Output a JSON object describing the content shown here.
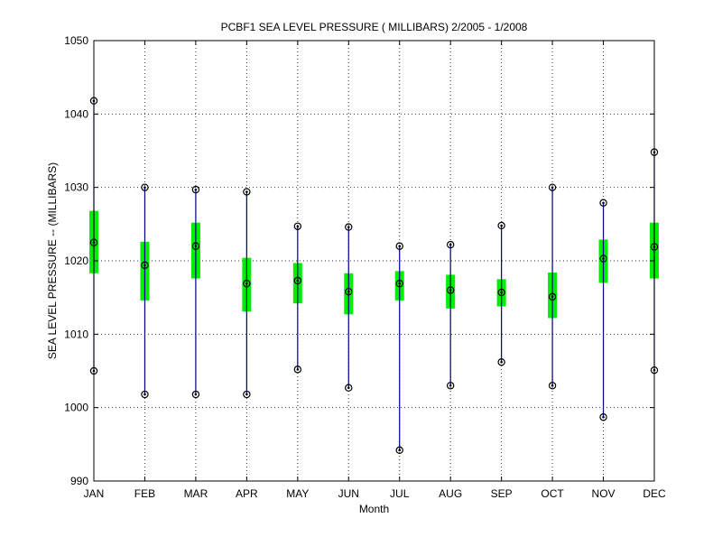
{
  "chart_data": {
    "type": "box",
    "title": "PCBF1  SEA LEVEL PRESSURE ( MILLIBARS) 2/2005 - 1/2008",
    "xlabel": "Month",
    "ylabel": "SEA LEVEL PRESSURE -- (MILLIBARS)",
    "ylim": [
      990,
      1050
    ],
    "yticks": [
      990,
      1000,
      1010,
      1020,
      1030,
      1040,
      1050
    ],
    "grid": true,
    "categories": [
      "JAN",
      "FEB",
      "MAR",
      "APR",
      "MAY",
      "JUN",
      "JUL",
      "AUG",
      "SEP",
      "OCT",
      "NOV",
      "DEC"
    ],
    "min": [
      1005.0,
      1001.8,
      1001.8,
      1001.8,
      1005.2,
      1002.7,
      994.2,
      1003.0,
      1006.2,
      1003.0,
      998.7,
      1005.1
    ],
    "q1": [
      1018.3,
      1014.6,
      1017.6,
      1013.1,
      1014.2,
      1012.7,
      1014.6,
      1013.5,
      1013.8,
      1012.2,
      1017.0,
      1017.6
    ],
    "median": [
      1022.5,
      1019.4,
      1022.0,
      1016.9,
      1017.3,
      1015.8,
      1016.9,
      1016.0,
      1015.7,
      1015.1,
      1020.3,
      1021.9
    ],
    "q3": [
      1026.8,
      1022.6,
      1025.2,
      1020.4,
      1019.7,
      1018.3,
      1018.6,
      1018.1,
      1017.5,
      1018.4,
      1022.9,
      1025.2
    ],
    "max": [
      1041.8,
      1030.0,
      1029.7,
      1029.4,
      1024.7,
      1024.6,
      1022.0,
      1022.2,
      1024.8,
      1030.0,
      1027.9,
      1034.8
    ],
    "colors": {
      "whisker": "#00008b",
      "box": "#00ee00",
      "marker": "#000000",
      "grid": "#000000"
    }
  }
}
